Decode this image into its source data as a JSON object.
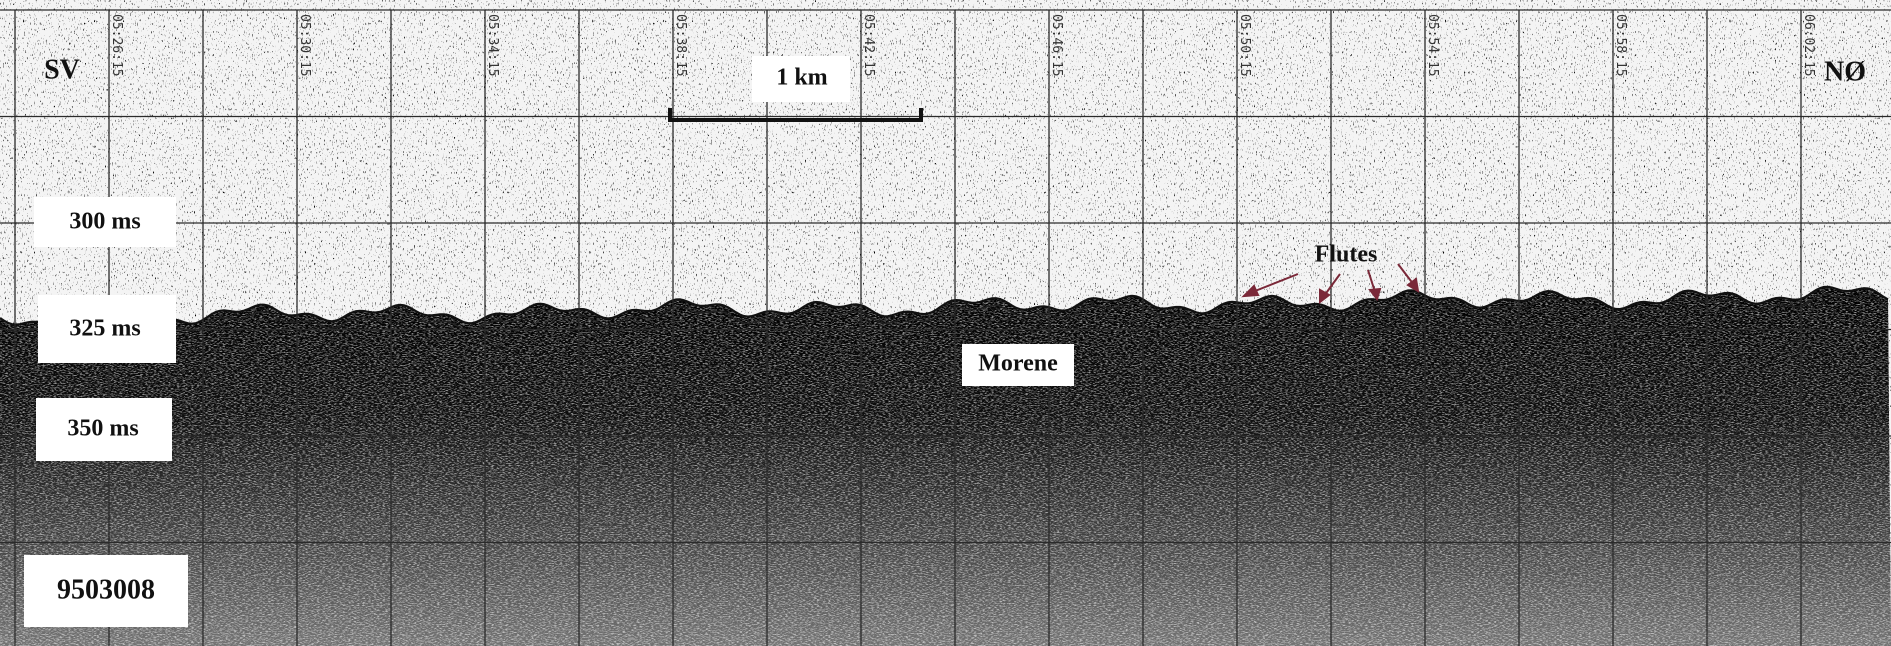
{
  "header": {
    "left": "SV",
    "right": "NØ"
  },
  "scale_bar": "1 km",
  "time_marks": [
    "05:26:15",
    "05:30:15",
    "05:34:15",
    "05:38:15",
    "05:42:15",
    "05:46:15",
    "05:50:15",
    "05:54:15",
    "05:58:15",
    "06:02:15"
  ],
  "depth_labels": [
    "300 ms",
    "325 ms",
    "350 ms"
  ],
  "line_id": "9503008",
  "annotations": {
    "morene": "Morene",
    "flutes": "Flutes"
  }
}
